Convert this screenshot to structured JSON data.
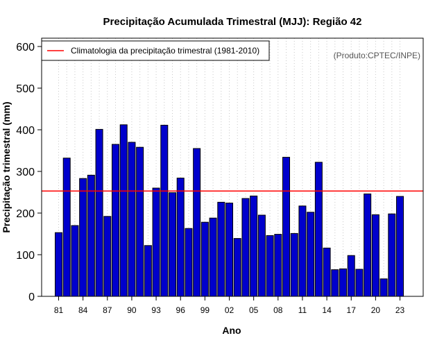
{
  "chart_data": {
    "type": "bar",
    "title": "Precipitação Acumulada Trimestral (MJJ): Região 42",
    "xlabel": "Ano",
    "ylabel": "Precipitação trimestral (mm)",
    "ylim": [
      0,
      620
    ],
    "yticks": [
      "0",
      "100",
      "200",
      "300",
      "400",
      "500",
      "600"
    ],
    "xtick_labels": [
      "81",
      "84",
      "87",
      "90",
      "93",
      "96",
      "99",
      "02",
      "05",
      "08",
      "11",
      "14",
      "17",
      "20",
      "23"
    ],
    "years": [
      1981,
      1982,
      1983,
      1984,
      1985,
      1986,
      1987,
      1988,
      1989,
      1990,
      1991,
      1992,
      1993,
      1994,
      1995,
      1996,
      1997,
      1998,
      1999,
      2000,
      2001,
      2002,
      2003,
      2004,
      2005,
      2006,
      2007,
      2008,
      2009,
      2010,
      2011,
      2012,
      2013,
      2014,
      2015,
      2016,
      2017,
      2018,
      2019,
      2020,
      2021,
      2022,
      2023
    ],
    "values": [
      153,
      332,
      170,
      283,
      291,
      401,
      192,
      365,
      412,
      370,
      358,
      122,
      260,
      411,
      249,
      284,
      163,
      355,
      178,
      188,
      226,
      224,
      139,
      235,
      241,
      195,
      146,
      149,
      334,
      151,
      217,
      202,
      322,
      116,
      64,
      66,
      98,
      65,
      246,
      196,
      42,
      198,
      240
    ],
    "climatology": 253,
    "bar_color": "#0000cc",
    "climatology_color": "#ff0000",
    "legend": {
      "label": "Climatologia da precipitação trimestral (1981-2010)",
      "position": "top-left"
    },
    "annotation": "(Produto:CPTEC/INPE)",
    "grid": "vertical dotted"
  }
}
